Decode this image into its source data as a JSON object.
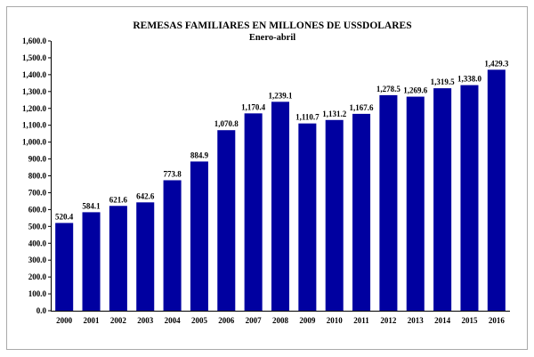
{
  "chart_data": {
    "type": "bar",
    "title": "REMESAS FAMILIARES  EN MILLONES DE USSDOLARES",
    "subtitle": "Enero-abril",
    "categories": [
      "2000",
      "2001",
      "2002",
      "2003",
      "2004",
      "2005",
      "2006",
      "2007",
      "2008",
      "2009",
      "2010",
      "2011",
      "2012",
      "2013",
      "2014",
      "2015",
      "2016"
    ],
    "values": [
      520.4,
      584.1,
      621.6,
      642.6,
      773.8,
      884.9,
      1070.8,
      1170.4,
      1239.1,
      1110.7,
      1131.2,
      1167.6,
      1278.5,
      1269.6,
      1319.5,
      1338.0,
      1429.3
    ],
    "value_labels": [
      "520.4",
      "584.1",
      "621.6",
      "642.6",
      "773.8",
      "884.9",
      "1,070.8",
      "1,170.4",
      "1,239.1",
      "1,110.7",
      "1,131.2",
      "1,167.6",
      "1,278.5",
      "1,269.6",
      "1,319.5",
      "1,338.0",
      "1,429.3"
    ],
    "y_ticks": [
      "0.0",
      "100.0",
      "200.0",
      "300.0",
      "400.0",
      "500.0",
      "600.0",
      "700.0",
      "800.0",
      "900.0",
      "1,000.0",
      "1,100.0",
      "1,200.0",
      "1,300.0",
      "1,400.0",
      "1,500.0",
      "1,600.0"
    ],
    "ylim": [
      0,
      1600
    ],
    "xlabel": "",
    "ylabel": "",
    "grid": false,
    "bar_color": "#0000a0"
  }
}
